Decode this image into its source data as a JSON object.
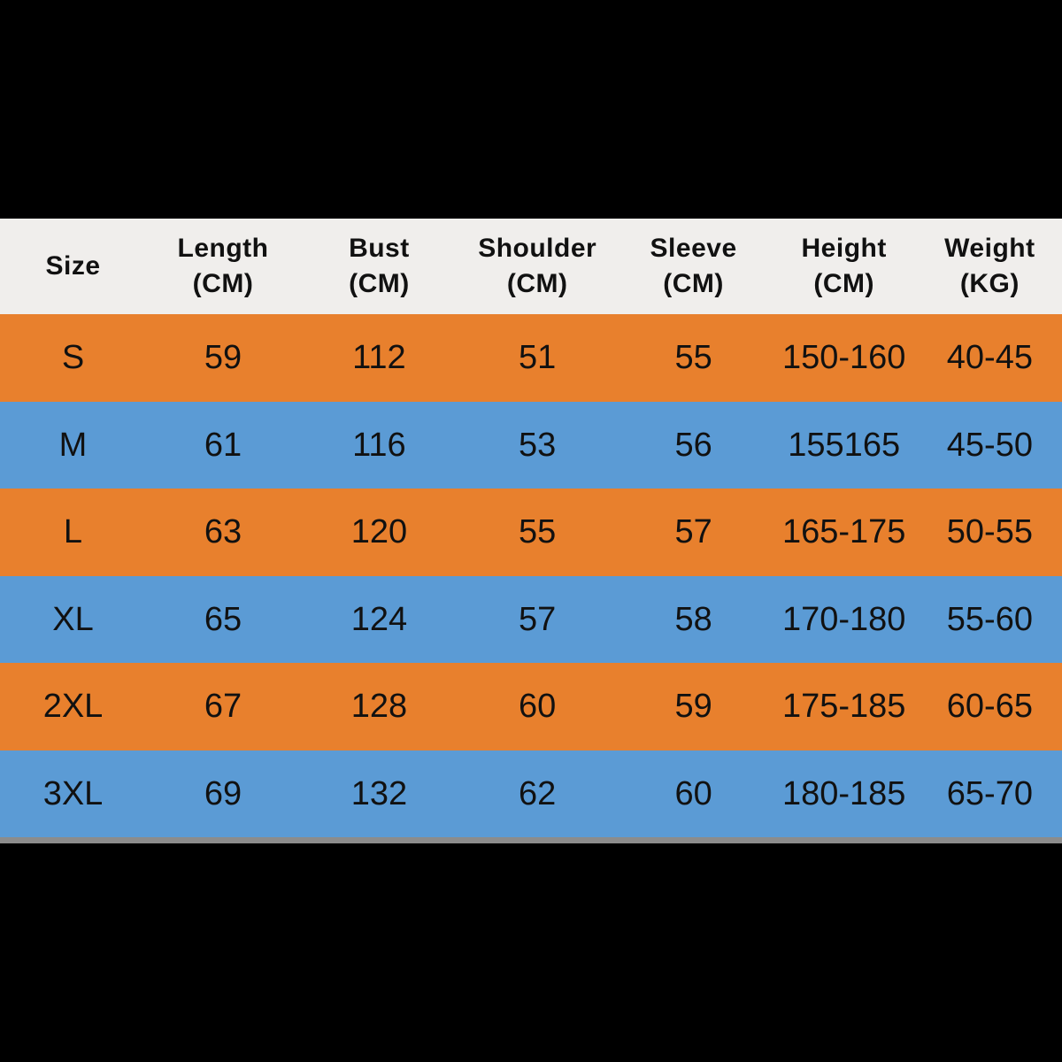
{
  "colors": {
    "background": "#000000",
    "header_bg": "#F0EEEC",
    "orange_row": "#E8802D",
    "blue_row": "#5B9BD5",
    "divider_gray": "#8C8C8C",
    "text": "#111111"
  },
  "header_display": [
    {
      "line1": "Size",
      "line2": ""
    },
    {
      "line1": "Length",
      "line2": "(CM)"
    },
    {
      "line1": "Bust",
      "line2": "(CM)"
    },
    {
      "line1": "Shoulder",
      "line2": "(CM)"
    },
    {
      "line1": "Sleeve",
      "line2": "(CM)"
    },
    {
      "line1": "Height",
      "line2": "(CM)"
    },
    {
      "line1": "Weight",
      "line2": "(KG)"
    }
  ],
  "chart_data": {
    "type": "table",
    "title": "",
    "columns": [
      "Size",
      "Length (CM)",
      "Bust (CM)",
      "Shoulder (CM)",
      "Sleeve (CM)",
      "Height (CM)",
      "Weight (KG)"
    ],
    "rows": [
      [
        "S",
        "59",
        "112",
        "51",
        "55",
        "150-160",
        "40-45"
      ],
      [
        "M",
        "61",
        "116",
        "53",
        "56",
        "155165",
        "45-50"
      ],
      [
        "L",
        "63",
        "120",
        "55",
        "57",
        "165-175",
        "50-55"
      ],
      [
        "XL",
        "65",
        "124",
        "57",
        "58",
        "170-180",
        "55-60"
      ],
      [
        "2XL",
        "67",
        "128",
        "60",
        "59",
        "175-185",
        "60-65"
      ],
      [
        "3XL",
        "69",
        "132",
        "62",
        "60",
        "180-185",
        "65-70"
      ]
    ]
  }
}
